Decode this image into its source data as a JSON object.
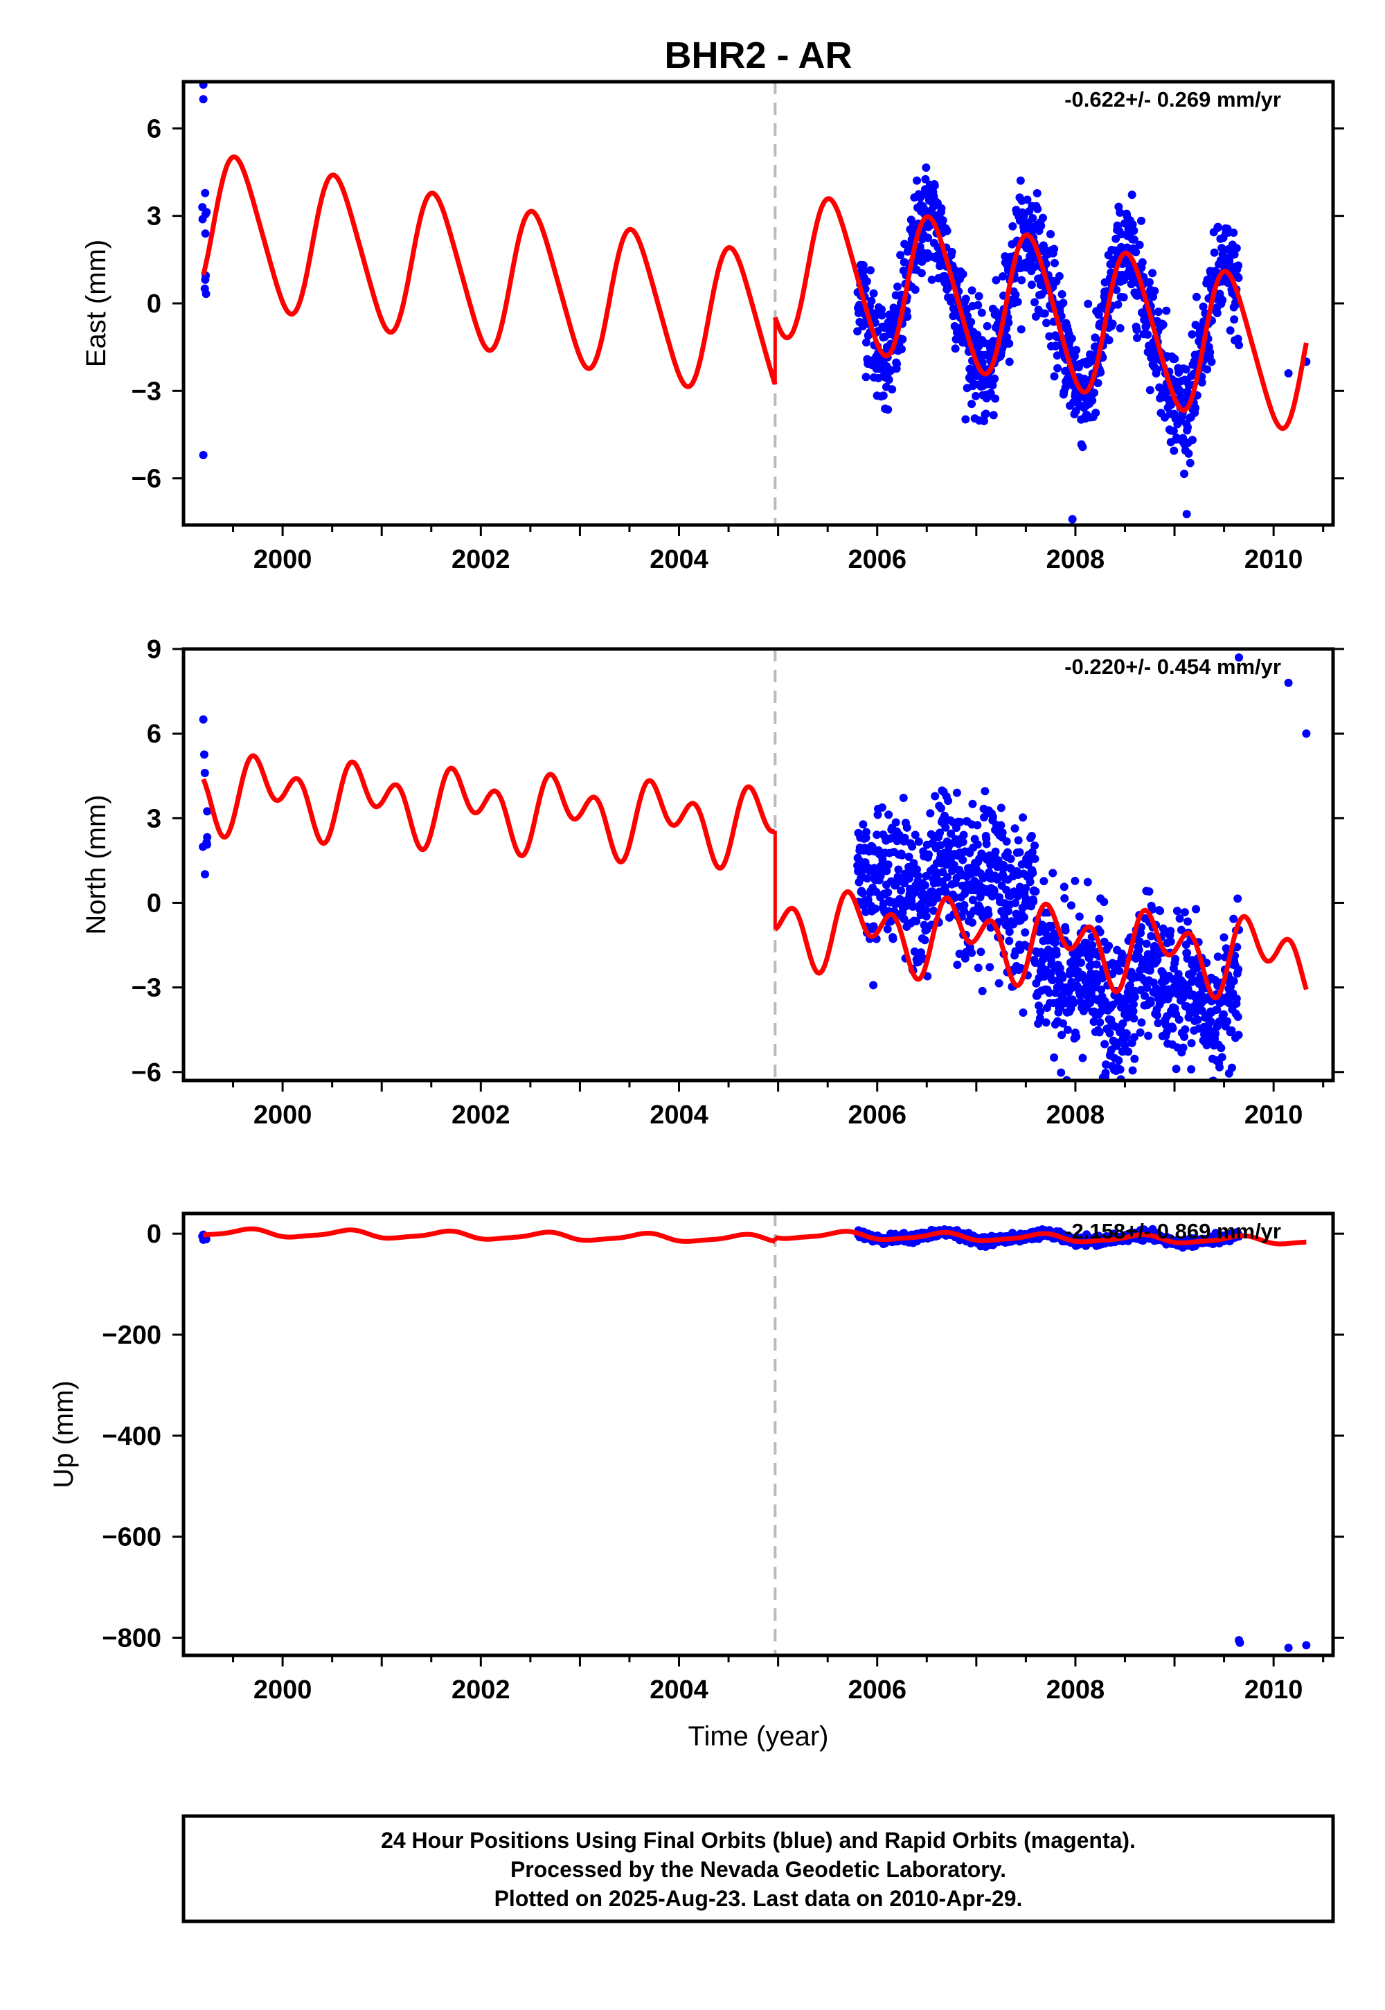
{
  "title": "BHR2 - AR",
  "x_axis_title": "Time (year)",
  "footer_lines": [
    "24 Hour Positions Using Final Orbits (blue) and Rapid Orbits (magenta).",
    "Processed by the Nevada Geodetic Laboratory.",
    "Plotted on 2025-Aug-23. Last data on 2010-Apr-29."
  ],
  "colors": {
    "final_orbit_points": "#0000ff",
    "model_fit": "#ff0000",
    "equipment_change": "#bbbbbb",
    "frame": "#000000"
  },
  "chart_data": [
    {
      "type": "scatter",
      "component": "East",
      "ylabel": "East (mm)",
      "rate_label": "-0.622+/- 0.269 mm/yr",
      "xlim": [
        1999.0,
        2010.6
      ],
      "ylim": [
        -7.6,
        7.6
      ],
      "x_ticks": [
        2000,
        2002,
        2004,
        2006,
        2008,
        2010
      ],
      "y_ticks": [
        6,
        3,
        0,
        -3,
        -6
      ],
      "y_tick_labels": [
        "6",
        "3",
        "0",
        "−3",
        "−6"
      ],
      "offset_epoch": 2004.97,
      "model": {
        "rate": -0.622,
        "pre_offset_intercept": 2.7,
        "post_offset_intercept": 5.0,
        "annual_amplitude": 2.45,
        "semiannual_amplitude": 0.3,
        "annual_phase_year": 1999.3,
        "semiannual_phase_year": 1999.8,
        "epoch": 1999.2,
        "end": 2010.33
      },
      "outliers": [
        [
          1999.2,
          7.5
        ],
        [
          1999.2,
          7.0
        ],
        [
          1999.2,
          -5.2
        ],
        [
          2007.97,
          -7.4
        ],
        [
          2010.33,
          -2.0
        ],
        [
          2010.15,
          -2.4
        ]
      ],
      "daily_positions": {
        "start": 2005.8,
        "end": 2009.65,
        "count": 1200,
        "scatter_mm": 0.9,
        "early_start": 1999.18,
        "early_end": 1999.24,
        "early_count": 10,
        "early_range": [
          -0.5,
          3.8
        ]
      }
    },
    {
      "type": "scatter",
      "component": "North",
      "ylabel": "North (mm)",
      "rate_label": "-0.220+/- 0.454 mm/yr",
      "xlim": [
        1999.0,
        2010.6
      ],
      "ylim": [
        -6.3,
        9.0
      ],
      "x_ticks": [
        2000,
        2002,
        2004,
        2006,
        2008,
        2010
      ],
      "y_ticks": [
        9,
        6,
        3,
        0,
        -3,
        -6
      ],
      "y_tick_labels": [
        "9",
        "6",
        "3",
        "0",
        "−3",
        "−6"
      ],
      "offset_epoch": 2004.97,
      "model": {
        "rate": -0.22,
        "pre_offset_intercept": 4.0,
        "post_offset_intercept": 0.5,
        "annual_amplitude": 0.8,
        "semiannual_amplitude": 0.9,
        "annual_phase_year": 1999.6,
        "semiannual_phase_year": 1999.55,
        "epoch": 1999.2,
        "end": 2010.33
      },
      "outliers": [
        [
          2009.65,
          8.7
        ],
        [
          2010.15,
          7.8
        ],
        [
          2010.33,
          6.0
        ],
        [
          1999.2,
          6.5
        ]
      ],
      "daily_positions": {
        "start": 2005.8,
        "end": 2009.65,
        "count": 1200,
        "scatter_mm": 1.3,
        "segments": [
          [
            2005.8,
            2007.6,
            1.8
          ],
          [
            2007.6,
            2009.65,
            -1.8
          ]
        ],
        "early_start": 1999.18,
        "early_end": 1999.24,
        "early_count": 8,
        "early_range": [
          1.0,
          5.5
        ]
      }
    },
    {
      "type": "scatter",
      "component": "Up",
      "ylabel": "Up (mm)",
      "rate_label": "-2.158+/- 0.869 mm/yr",
      "xlim": [
        1999.0,
        2010.6
      ],
      "ylim": [
        -835,
        40
      ],
      "x_ticks": [
        2000,
        2002,
        2004,
        2006,
        2008,
        2010
      ],
      "y_ticks": [
        0,
        -200,
        -400,
        -600,
        -800
      ],
      "y_tick_labels": [
        "0",
        "−200",
        "−400",
        "−600",
        "−800"
      ],
      "offset_epoch": 2004.97,
      "model": {
        "rate": -2.158,
        "pre_offset_intercept": 2.0,
        "post_offset_intercept": 10.0,
        "annual_amplitude": 7.0,
        "semiannual_amplitude": 2.0,
        "annual_phase_year": 1999.4,
        "semiannual_phase_year": 1999.6,
        "epoch": 1999.2,
        "end": 2010.33
      },
      "outliers": [
        [
          2009.65,
          -805
        ],
        [
          2009.66,
          -810
        ],
        [
          2010.15,
          -820
        ],
        [
          2010.33,
          -815
        ],
        [
          1999.2,
          -12
        ],
        [
          1999.2,
          -2
        ]
      ],
      "daily_positions": {
        "start": 2005.8,
        "end": 2009.65,
        "count": 1000,
        "scatter_mm": 4,
        "early_start": 1999.18,
        "early_end": 1999.24,
        "early_count": 6,
        "early_range": [
          -12,
          5
        ]
      }
    }
  ]
}
